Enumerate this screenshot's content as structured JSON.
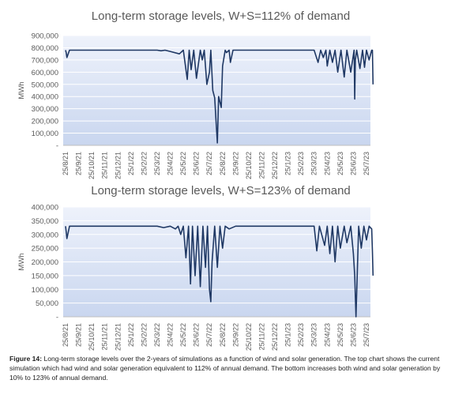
{
  "chart_data": [
    {
      "type": "line",
      "title": "Long-term storage levels, W+S=112% of demand",
      "ylabel": "MWh",
      "xlabel": "",
      "ylim": [
        0,
        900000
      ],
      "y_ticks": [
        "900,000",
        "800,000",
        "700,000",
        "600,000",
        "500,000",
        "400,000",
        "300,000",
        "200,000",
        "100,000",
        "-"
      ],
      "x_ticks": [
        "25/8/21",
        "25/9/21",
        "25/10/21",
        "25/11/21",
        "25/12/21",
        "25/1/22",
        "25/2/22",
        "25/3/22",
        "25/4/22",
        "25/5/22",
        "25/6/22",
        "25/7/22",
        "25/8/22",
        "25/9/22",
        "25/10/22",
        "25/11/22",
        "25/12/22",
        "25/1/23",
        "25/2/23",
        "25/3/23",
        "25/4/23",
        "25/5/23",
        "25/6/23",
        "25/7/23"
      ],
      "grid": true,
      "color": "#1f3864",
      "series": [
        {
          "x": [
            0,
            0.05,
            0.1,
            0.3,
            1,
            7,
            7.3,
            7.6,
            8,
            8.7,
            9,
            9.3,
            9.45,
            9.6,
            9.8,
            10,
            10.3,
            10.45,
            10.6,
            10.8,
            11,
            11.1,
            11.25,
            11.4,
            11.5,
            11.6,
            11.7,
            11.9,
            12,
            12.2,
            12.3,
            12.5,
            12.6,
            12.8,
            13,
            14,
            19,
            19.3,
            19.5,
            19.7,
            19.9,
            20,
            20.2,
            20.4,
            20.6,
            20.8,
            21.05,
            21.3,
            21.5,
            21.8,
            22.05,
            22.1,
            22.15,
            22.25,
            22.5,
            22.7,
            22.85,
            23,
            23.2,
            23.4,
            23.45,
            23.5
          ],
          "y": [
            780000,
            760000,
            720000,
            780000,
            780000,
            780000,
            775000,
            780000,
            770000,
            750000,
            780000,
            540000,
            780000,
            620000,
            780000,
            550000,
            780000,
            700000,
            780000,
            500000,
            600000,
            780000,
            450000,
            390000,
            200000,
            20000,
            400000,
            310000,
            650000,
            780000,
            760000,
            780000,
            680000,
            780000,
            780000,
            780000,
            780000,
            680000,
            780000,
            720000,
            780000,
            650000,
            780000,
            680000,
            780000,
            600000,
            780000,
            560000,
            780000,
            600000,
            780000,
            380000,
            700000,
            780000,
            630000,
            780000,
            640000,
            780000,
            700000,
            780000,
            780000,
            500000
          ]
        }
      ]
    },
    {
      "type": "line",
      "title": "Long-term storage levels, W+S=123% of demand",
      "ylabel": "MWh",
      "xlabel": "",
      "ylim": [
        0,
        400000
      ],
      "y_ticks": [
        "400,000",
        "350,000",
        "300,000",
        "250,000",
        "200,000",
        "150,000",
        "100,000",
        "50,000",
        "-"
      ],
      "x_ticks": [
        "25/8/21",
        "25/9/21",
        "25/10/21",
        "25/11/21",
        "25/12/21",
        "25/1/22",
        "25/2/22",
        "25/3/22",
        "25/4/22",
        "25/5/22",
        "25/6/22",
        "25/7/22",
        "25/8/22",
        "25/9/22",
        "25/10/22",
        "25/11/22",
        "25/12/22",
        "25/1/23",
        "25/2/23",
        "25/3/23",
        "25/4/23",
        "25/5/23",
        "25/6/23",
        "25/7/23"
      ],
      "grid": true,
      "color": "#1f3864",
      "series": [
        {
          "x": [
            0,
            0.05,
            0.1,
            0.3,
            1,
            7,
            7.5,
            8,
            8.4,
            8.6,
            8.8,
            9,
            9.2,
            9.4,
            9.55,
            9.7,
            9.9,
            10.1,
            10.3,
            10.5,
            10.7,
            10.85,
            11,
            11.1,
            11.2,
            11.4,
            11.6,
            11.8,
            12,
            12.2,
            12.5,
            13,
            19,
            19.2,
            19.4,
            19.8,
            20,
            20.2,
            20.4,
            20.6,
            20.8,
            21,
            21.3,
            21.5,
            21.8,
            22,
            22.1,
            22.2,
            22.4,
            22.6,
            22.8,
            23,
            23.2,
            23.4,
            23.45,
            23.5
          ],
          "y": [
            330000,
            310000,
            285000,
            330000,
            330000,
            330000,
            325000,
            330000,
            320000,
            330000,
            300000,
            330000,
            215000,
            330000,
            120000,
            330000,
            150000,
            330000,
            110000,
            330000,
            180000,
            330000,
            100000,
            55000,
            200000,
            330000,
            180000,
            330000,
            250000,
            330000,
            320000,
            330000,
            330000,
            240000,
            330000,
            260000,
            330000,
            230000,
            330000,
            200000,
            330000,
            250000,
            330000,
            270000,
            330000,
            230000,
            150000,
            0,
            330000,
            250000,
            330000,
            280000,
            330000,
            320000,
            240000,
            150000
          ]
        }
      ]
    }
  ],
  "caption": {
    "label": "Figure 14:",
    "text": " Long-term storage levels over the 2-years of simulations as a function of wind and solar generation. The top chart shows the current simulation which had wind and solar generation equivalent to 112% of annual demand. The bottom increases both wind and solar generation by 10% to 123% of annual demand."
  }
}
